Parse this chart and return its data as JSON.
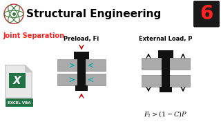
{
  "bg_header_color": "#F08080",
  "bg_body_color": "#FFFFFF",
  "header_text": "Structural Engineering",
  "header_text_color": "#000000",
  "badge_bg": "#1a1a1a",
  "badge_text": "6",
  "badge_text_color": "#FF2222",
  "subtitle_text": "Joint Separation",
  "subtitle_color": "#FF2222",
  "label1": "Preload, Fi",
  "label2": "External Load, P",
  "formula": "$F_i > (1-C)P$",
  "arrow_color_red": "#CC0000",
  "arrow_color_cyan": "#00AAAA",
  "arrow_color_black": "#000000",
  "fastener_black": "#111111",
  "plate_gray": "#AAAAAA",
  "plate_edge": "#777777",
  "excel_green": "#217346",
  "excel_doc_bg": "#E8E8E8",
  "excel_doc_fold": "#C8C8C8",
  "excel_label": "EXCEL VBA",
  "atom_orbit_color": "#3a7a3a",
  "atom_circle_color": "#cc3333",
  "header_fontsize": 11,
  "subtitle_fontsize": 7,
  "label_fontsize": 6,
  "formula_fontsize": 7
}
